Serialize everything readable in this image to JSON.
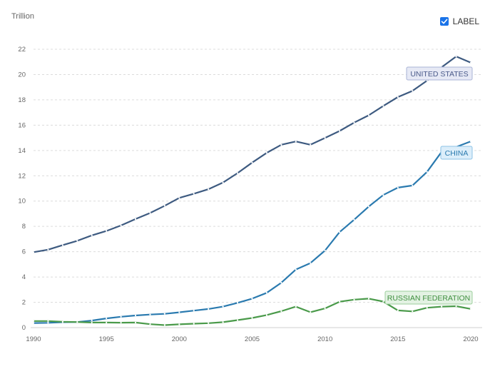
{
  "ui": {
    "unit_label": "Trillion",
    "toggle_label": "LABEL",
    "toggle_checked": true,
    "checkbox_color": "#1a73e8",
    "checkmark_icon": "check-icon"
  },
  "chart_data": {
    "type": "line",
    "title": "",
    "xlabel": "",
    "ylabel": "Trillion",
    "xlim": [
      1990,
      2020
    ],
    "ylim": [
      0,
      22
    ],
    "x_ticks": [
      1990,
      1995,
      2000,
      2005,
      2010,
      2015,
      2020
    ],
    "y_ticks": [
      0,
      2,
      4,
      6,
      8,
      10,
      12,
      14,
      16,
      18,
      20,
      22
    ],
    "grid": true,
    "legend": "inline labels at line ends",
    "x": [
      1990,
      1991,
      1992,
      1993,
      1994,
      1995,
      1996,
      1997,
      1998,
      1999,
      2000,
      2001,
      2002,
      2003,
      2004,
      2005,
      2006,
      2007,
      2008,
      2009,
      2010,
      2011,
      2012,
      2013,
      2014,
      2015,
      2016,
      2017,
      2018,
      2019,
      2020
    ],
    "series": [
      {
        "name": "UNITED STATES",
        "color": "#3d5a80",
        "label_fill": "#e6e9f5",
        "label_stroke": "#aab4d6",
        "label_text_color": "#4a5a8a",
        "values": [
          5.96,
          6.16,
          6.52,
          6.86,
          7.29,
          7.64,
          8.07,
          8.58,
          9.06,
          9.63,
          10.25,
          10.58,
          10.94,
          11.46,
          12.21,
          13.04,
          13.81,
          14.45,
          14.71,
          14.45,
          14.99,
          15.54,
          16.2,
          16.78,
          17.52,
          18.22,
          18.71,
          19.52,
          20.58,
          21.43,
          20.94
        ]
      },
      {
        "name": "CHINA",
        "color": "#2a7aaf",
        "label_fill": "#dceefa",
        "label_stroke": "#8cc3e6",
        "label_text_color": "#2a7aaf",
        "values": [
          0.36,
          0.38,
          0.43,
          0.44,
          0.56,
          0.73,
          0.86,
          0.96,
          1.03,
          1.09,
          1.21,
          1.34,
          1.47,
          1.66,
          1.96,
          2.29,
          2.75,
          3.55,
          4.59,
          5.1,
          6.09,
          7.55,
          8.53,
          9.57,
          10.48,
          11.06,
          11.23,
          12.31,
          13.89,
          14.28,
          14.72
        ]
      },
      {
        "name": "RUSSIAN FEDERATION",
        "color": "#4a9a4a",
        "label_fill": "#e3f2e3",
        "label_stroke": "#9ccf9c",
        "label_text_color": "#3f8f3f",
        "values": [
          0.52,
          0.52,
          0.46,
          0.44,
          0.4,
          0.4,
          0.39,
          0.4,
          0.27,
          0.2,
          0.26,
          0.31,
          0.35,
          0.43,
          0.59,
          0.76,
          0.99,
          1.3,
          1.66,
          1.22,
          1.52,
          2.05,
          2.21,
          2.29,
          2.06,
          1.36,
          1.28,
          1.57,
          1.66,
          1.69,
          1.48
        ]
      }
    ]
  }
}
